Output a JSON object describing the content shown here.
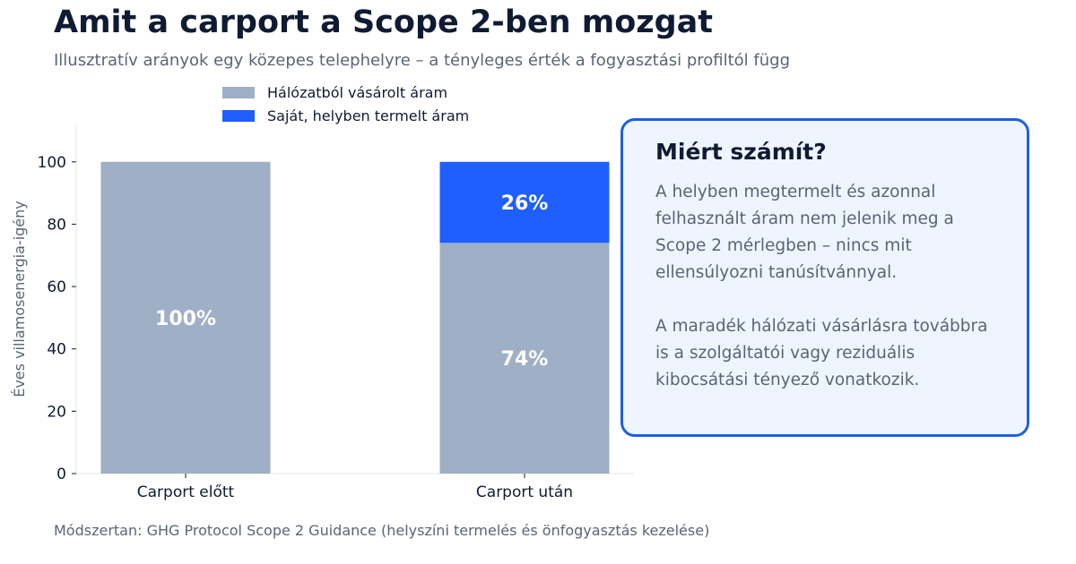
{
  "title": "Amit a carport a Scope 2-ben mozgat",
  "subtitle": "Illusztratív arányok egy közepes telephelyre – a tényleges érték a fogyasztási profiltól függ",
  "legend": [
    {
      "label": "Hálózatból vásárolt áram",
      "color": "#9eafc6"
    },
    {
      "label": "Saját, helyben termelt áram",
      "color": "#1f5eff"
    }
  ],
  "callout": {
    "title": "Miért számít?",
    "paragraphs": [
      "A helyben megtermelt és azonnal felhasznált áram nem jelenik meg a Scope 2 mérlegben – nincs mit ellensúlyozni tanúsítvánnyal.",
      "A maradék hálózati vásárlásra továbbra is a szolgáltatói vagy reziduális kibocsátási tényező vonatkozik."
    ]
  },
  "footer": "Módszertan: GHG Protocol Scope 2 Guidance (helyszíni termelés és önfogyasztás kezelése)",
  "chart_data": {
    "type": "bar",
    "stacked": true,
    "categories": [
      "Carport előtt",
      "Carport után"
    ],
    "series": [
      {
        "name": "Hálózatból vásárolt áram",
        "values": [
          100,
          74
        ],
        "labels": [
          "100%",
          "74%"
        ],
        "color": "#9eafc6"
      },
      {
        "name": "Saját, helyben termelt áram",
        "values": [
          0,
          26
        ],
        "labels": [
          "",
          "26%"
        ],
        "color": "#1f5eff"
      }
    ],
    "ylabel": "Éves villamosenergia-igény",
    "xlabel": "",
    "ylim": [
      0,
      112
    ],
    "yticks": [
      0,
      20,
      40,
      60,
      80,
      100
    ],
    "grid": false,
    "legend_position": "top"
  }
}
